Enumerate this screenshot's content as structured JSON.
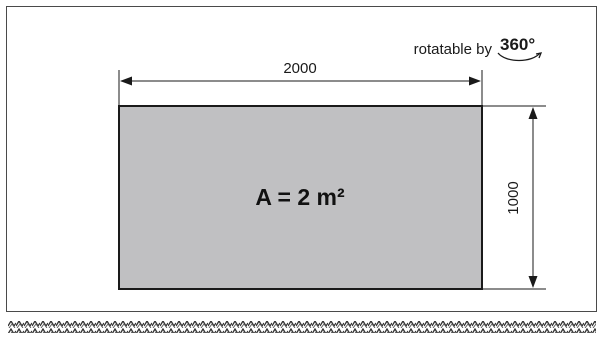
{
  "rotation": {
    "label": "rotatable by",
    "degrees": "360°"
  },
  "dimensions": {
    "width": "2000",
    "height": "1000"
  },
  "panel": {
    "area_label": "A = 2 m²",
    "fill": "#c0c0c2"
  },
  "colors": {
    "frame": "#4a4a4a",
    "line": "#1a1a1a"
  }
}
